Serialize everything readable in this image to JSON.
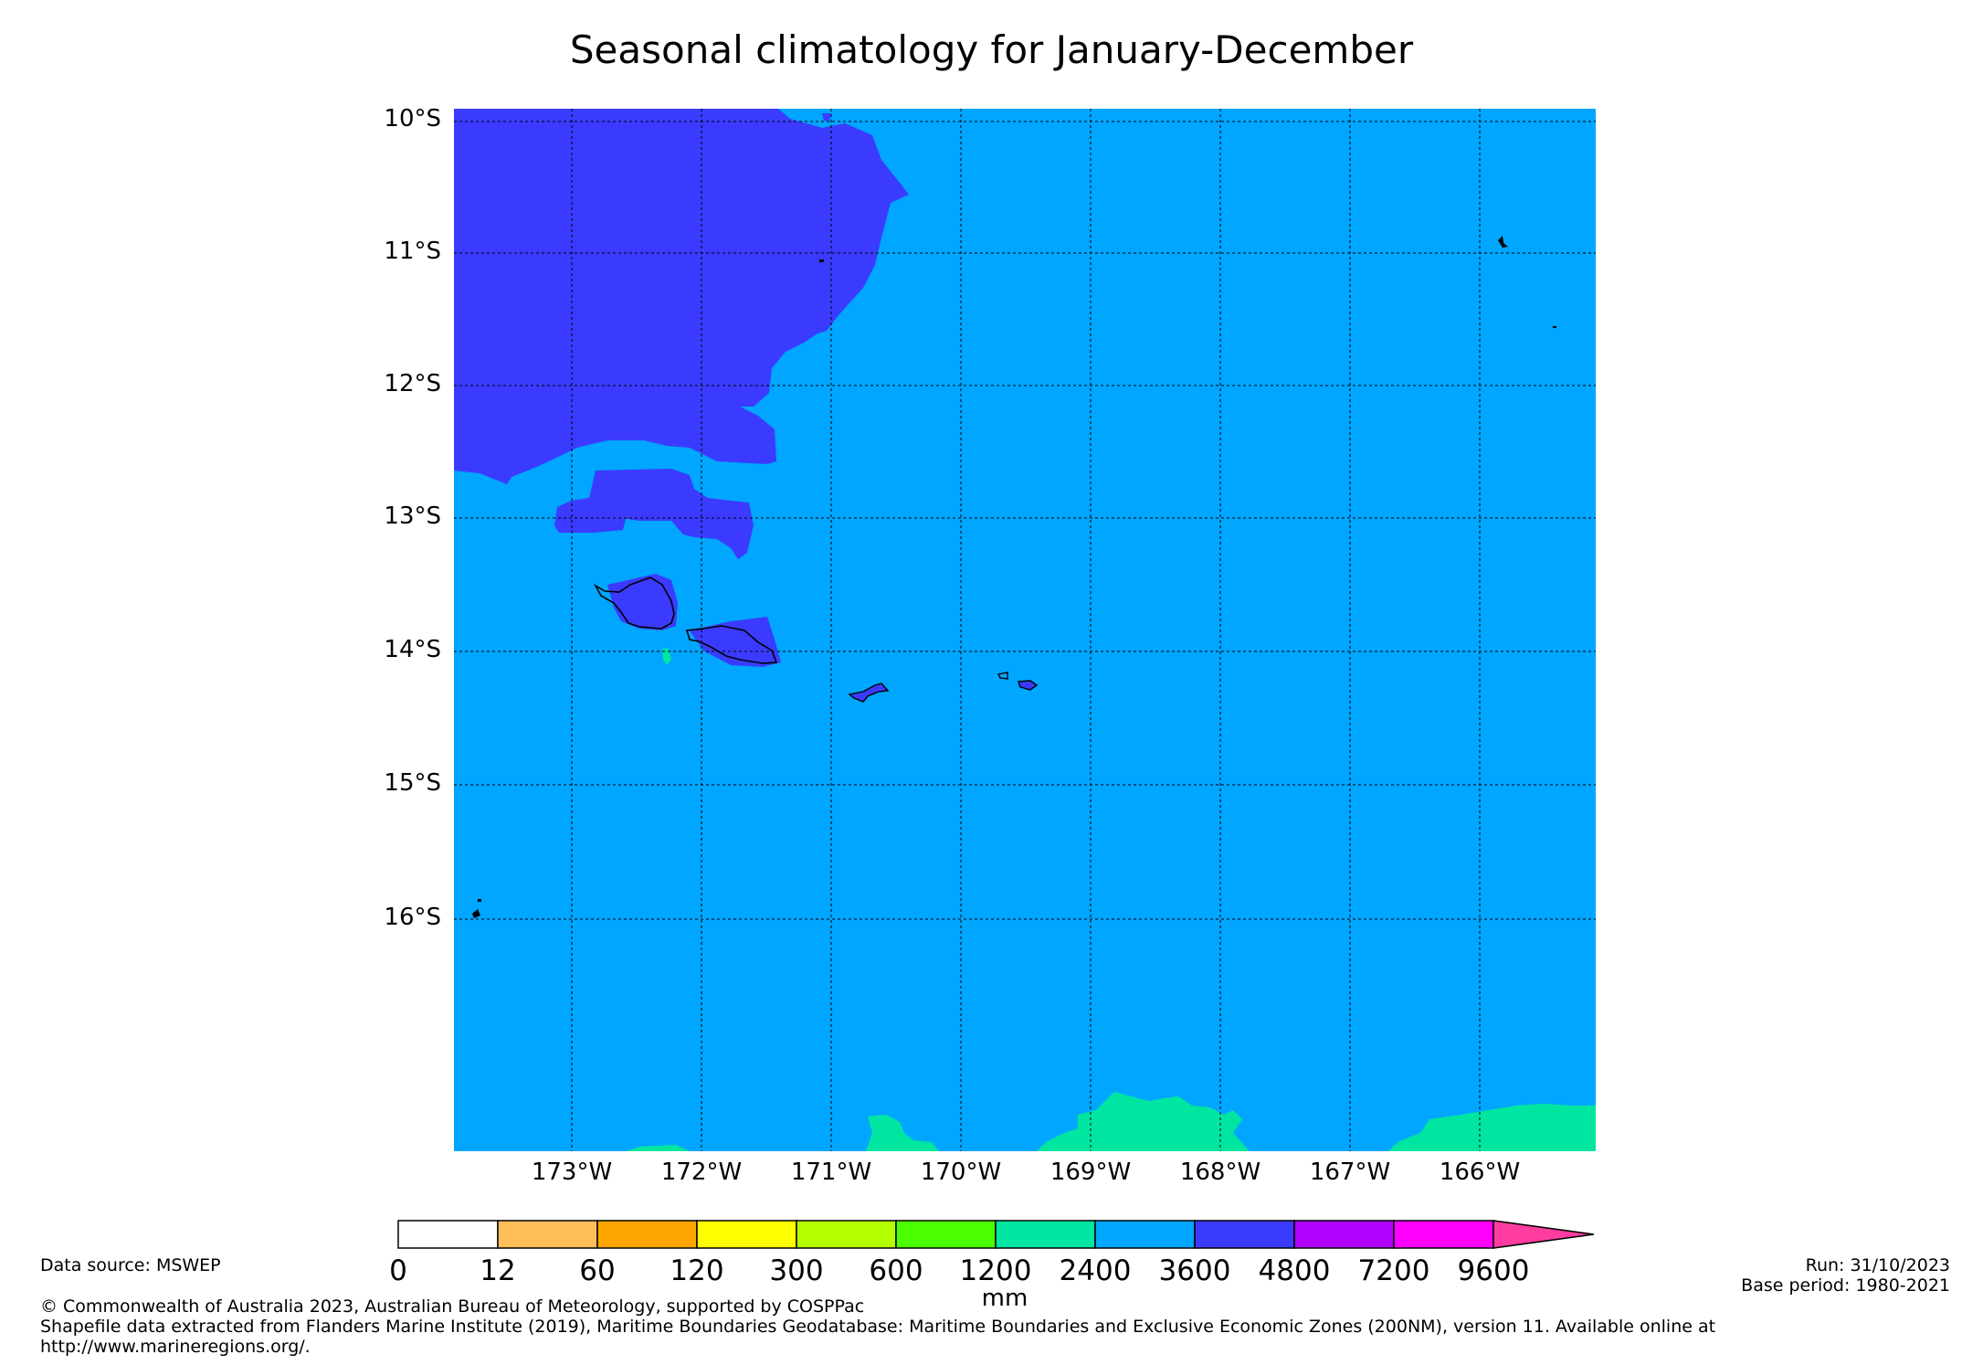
{
  "title": "Seasonal climatology for January-December",
  "map": {
    "lat_labels": [
      "10°S",
      "11°S",
      "12°S",
      "13°S",
      "14°S",
      "15°S",
      "16°S"
    ],
    "lon_labels": [
      "173°W",
      "172°W",
      "171°W",
      "170°W",
      "169°W",
      "168°W",
      "167°W",
      "166°W"
    ],
    "background_class_color": "#00a6ff",
    "regions": [
      {
        "name": "north-west high rainfall area",
        "class": "3600-4800",
        "color": "#3b3bff"
      },
      {
        "name": "Savai'i",
        "class": "3600-4800",
        "color": "#3b3bff"
      },
      {
        "name": "Upolu",
        "class": "3600-4800",
        "color": "#3b3bff"
      },
      {
        "name": "southern band",
        "class": "1200-2400",
        "color": "#00e6a0"
      }
    ]
  },
  "colorbar": {
    "units": "mm",
    "boundaries": [
      "0",
      "12",
      "60",
      "120",
      "300",
      "600",
      "1200",
      "2400",
      "3600",
      "4800",
      "7200",
      "9600"
    ],
    "colors": [
      "#ffffff",
      "#ffbe5a",
      "#ffa500",
      "#ffff00",
      "#b4ff00",
      "#4cff00",
      "#00e6a0",
      "#00a6ff",
      "#3b3bff",
      "#b000ff",
      "#ff00ff"
    ],
    "extend_color": "#ff3ca0"
  },
  "footer": {
    "source": "Data source: MSWEP",
    "run": "Run: 31/10/2023",
    "base_period": "Base period: 1980-2021",
    "copyright": "© Commonwealth of Australia 2023, Australian Bureau of Meteorology, supported by COSPPac",
    "shapefile": "Shapefile data extracted from Flanders Marine Institute (2019), Maritime Boundaries Geodatabase: Maritime Boundaries and Exclusive Economic Zones (200NM), version 11. Available online at",
    "url": "http://www.marineregions.org/."
  }
}
